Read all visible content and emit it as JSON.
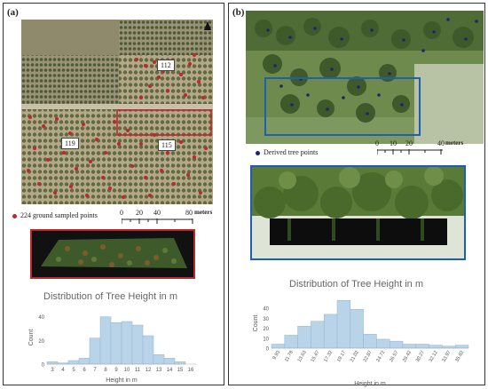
{
  "panel_a": {
    "label": "(a)",
    "plot_labels": [
      "112",
      "119",
      "115"
    ],
    "legend": "224 ground sampled points",
    "scale_ticks": [
      "0",
      "20",
      "40",
      "80"
    ],
    "scale_unit": "meters"
  },
  "panel_b": {
    "label": "(b)",
    "legend": "Derived tree points",
    "scale_ticks": [
      "0",
      "10",
      "20",
      "40"
    ],
    "scale_unit": "meters"
  },
  "colors": {
    "red": "#c0272d",
    "blue": "#1f5fad",
    "bar": "#b9d4e8",
    "bar_stroke": "#8fb5d3"
  },
  "chart_data": [
    {
      "type": "bar",
      "title": "Distribution of Tree Height in m",
      "xlabel": "Height in m",
      "ylabel": "Count",
      "categories": [
        "3",
        "4",
        "5",
        "6",
        "7",
        "8",
        "9",
        "10",
        "11",
        "12",
        "13",
        "14",
        "15",
        "16"
      ],
      "values": [
        2,
        1,
        3,
        5,
        22,
        40,
        35,
        36,
        33,
        24,
        8,
        5,
        2,
        0
      ],
      "yticks": [
        0,
        20,
        40
      ],
      "ylim": [
        0,
        45
      ]
    },
    {
      "type": "bar",
      "title": "Distribution of Tree Height in m",
      "xlabel": "Height in m",
      "ylabel": "Count",
      "categories": [
        "9.93",
        "11.78",
        "13.63",
        "15.47",
        "17.32",
        "19.17",
        "21.02",
        "22.87",
        "24.72",
        "26.57",
        "28.42",
        "30.27",
        "32.12",
        "33.97",
        "35.82"
      ],
      "values": [
        4,
        13,
        22,
        27,
        34,
        48,
        39,
        14,
        9,
        7,
        4,
        4,
        3,
        2,
        3
      ],
      "yticks": [
        0,
        10,
        20,
        30,
        40
      ],
      "ylim": [
        0,
        50
      ]
    }
  ]
}
